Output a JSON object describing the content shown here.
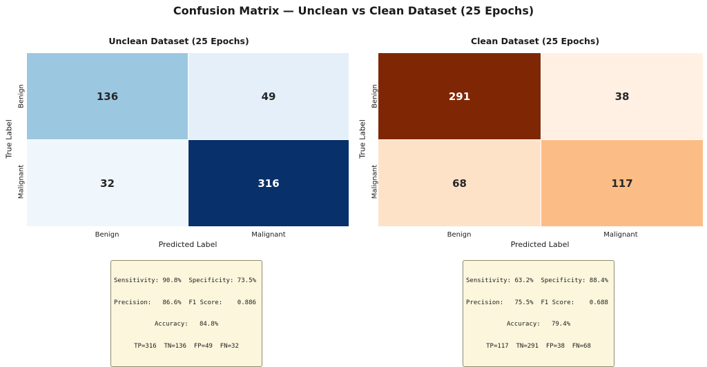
{
  "suptitle": "Confusion Matrix — Unclean vs Clean Dataset (25 Epochs)",
  "chart_data": [
    {
      "type": "heatmap",
      "title": "Unclean Dataset (25 Epochs)",
      "xlabel": "Predicted Label",
      "ylabel": "True Label",
      "x_categories": [
        "Benign",
        "Malignant"
      ],
      "y_categories": [
        "Benign",
        "Malignant"
      ],
      "values": [
        [
          136,
          49
        ],
        [
          32,
          316
        ]
      ],
      "colormap": "Blues",
      "cell_colors": [
        [
          "#9cc7e0",
          "#e4eff9"
        ],
        [
          "#eff6fc",
          "#08306b"
        ]
      ],
      "cell_text_colors": [
        [
          "#262626",
          "#262626"
        ],
        [
          "#262626",
          "#ffffff"
        ]
      ],
      "stats": {
        "line1": "Sensitivity: 90.8%  Specificity: 73.5%",
        "line2": "Precision:   86.6%  F1 Score:    0.886",
        "line3": "Accuracy:   84.8%",
        "line4": "TP=316  TN=136  FP=49  FN=32"
      }
    },
    {
      "type": "heatmap",
      "title": "Clean Dataset (25 Epochs)",
      "xlabel": "Predicted Label",
      "ylabel": "True Label",
      "x_categories": [
        "Benign",
        "Malignant"
      ],
      "y_categories": [
        "Benign",
        "Malignant"
      ],
      "values": [
        [
          291,
          38
        ],
        [
          68,
          117
        ]
      ],
      "colormap": "Oranges",
      "cell_colors": [
        [
          "#7f2704",
          "#fff0e3"
        ],
        [
          "#fde2c8",
          "#fcbc86"
        ]
      ],
      "cell_text_colors": [
        [
          "#ffffff",
          "#262626"
        ],
        [
          "#262626",
          "#262626"
        ]
      ],
      "stats": {
        "line1": "Sensitivity: 63.2%  Specificity: 88.4%",
        "line2": "Precision:   75.5%  F1 Score:    0.688",
        "line3": "Accuracy:   79.4%",
        "line4": "TP=117  TN=291  FP=38  FN=68"
      }
    }
  ]
}
